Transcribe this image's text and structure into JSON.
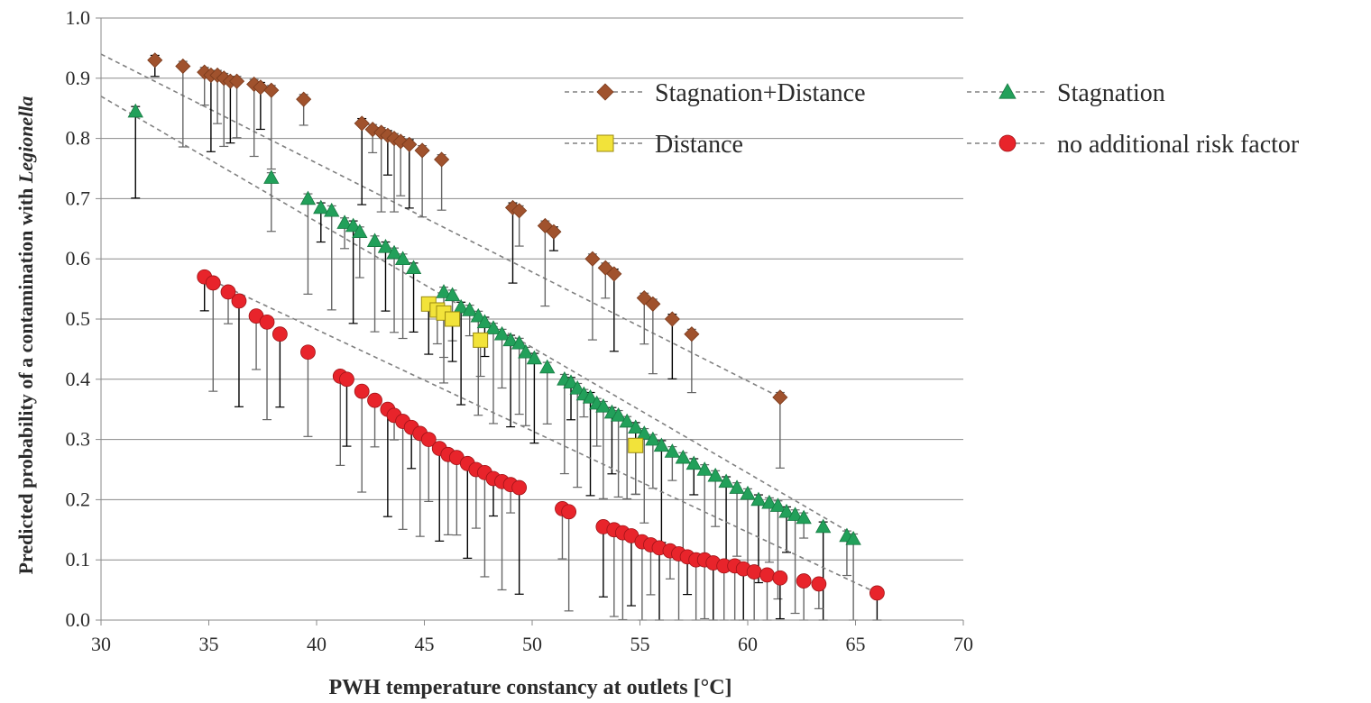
{
  "chart_data": {
    "type": "scatter",
    "title": "",
    "xlabel": "PWH temperature constancy at outlets [°C]",
    "ylabel_main": "Predicted probability of a contamination with ",
    "ylabel_italic": "Legionella",
    "xlim": [
      30,
      70
    ],
    "ylim": [
      0.0,
      1.0
    ],
    "xticks": [
      "30",
      "35",
      "40",
      "45",
      "50",
      "55",
      "60",
      "65",
      "70"
    ],
    "yticks": [
      "0.0",
      "0.1",
      "0.2",
      "0.3",
      "0.4",
      "0.5",
      "0.6",
      "0.7",
      "0.8",
      "0.9",
      "1.0"
    ],
    "grid": "horizontal",
    "legend_position": "top-right",
    "series": [
      {
        "name": "Stagnation+Distance",
        "marker": "diamond",
        "color": "#a0522d",
        "line_color": "#808080",
        "trend": [
          [
            30,
            0.94
          ],
          [
            61.5,
            0.37
          ]
        ],
        "x": [
          32.5,
          33.8,
          34.8,
          35.1,
          35.4,
          35.7,
          36.0,
          36.3,
          37.1,
          37.4,
          37.9,
          39.4,
          42.1,
          42.6,
          43.0,
          43.3,
          43.6,
          43.9,
          44.3,
          44.9,
          45.8,
          49.1,
          49.4,
          50.6,
          51.0,
          52.8,
          53.4,
          53.8,
          55.2,
          55.6,
          56.5,
          57.4,
          61.5
        ],
        "y": [
          0.93,
          0.92,
          0.91,
          0.905,
          0.905,
          0.9,
          0.895,
          0.895,
          0.89,
          0.885,
          0.88,
          0.865,
          0.825,
          0.815,
          0.81,
          0.805,
          0.8,
          0.795,
          0.79,
          0.78,
          0.765,
          0.685,
          0.68,
          0.655,
          0.645,
          0.6,
          0.585,
          0.575,
          0.535,
          0.525,
          0.5,
          0.475,
          0.37
        ]
      },
      {
        "name": "Stagnation",
        "marker": "triangle",
        "color": "#22a05a",
        "line_color": "#808080",
        "trend": [
          [
            30,
            0.87
          ],
          [
            65,
            0.14
          ]
        ],
        "x": [
          31.6,
          37.9,
          39.6,
          40.2,
          40.7,
          41.3,
          41.7,
          42.0,
          42.7,
          43.2,
          43.6,
          44.0,
          44.5,
          45.9,
          46.3,
          46.7,
          47.1,
          47.5,
          47.8,
          48.2,
          48.6,
          49.0,
          49.4,
          49.7,
          50.1,
          50.7,
          51.5,
          51.8,
          52.1,
          52.4,
          52.7,
          53.0,
          53.3,
          53.7,
          54.0,
          54.4,
          54.8,
          55.2,
          55.6,
          56.0,
          56.5,
          57.0,
          57.5,
          58.0,
          58.5,
          59.0,
          59.5,
          60.0,
          60.5,
          61.0,
          61.4,
          61.8,
          62.2,
          62.6,
          63.5,
          64.6,
          64.9
        ],
        "y": [
          0.845,
          0.735,
          0.7,
          0.685,
          0.68,
          0.66,
          0.655,
          0.645,
          0.63,
          0.62,
          0.61,
          0.6,
          0.585,
          0.545,
          0.54,
          0.52,
          0.515,
          0.505,
          0.495,
          0.485,
          0.475,
          0.465,
          0.46,
          0.445,
          0.435,
          0.42,
          0.4,
          0.395,
          0.385,
          0.375,
          0.37,
          0.36,
          0.355,
          0.345,
          0.34,
          0.33,
          0.32,
          0.31,
          0.3,
          0.29,
          0.28,
          0.27,
          0.26,
          0.25,
          0.24,
          0.23,
          0.22,
          0.21,
          0.2,
          0.195,
          0.19,
          0.18,
          0.175,
          0.17,
          0.155,
          0.14,
          0.135
        ]
      },
      {
        "name": "Distance",
        "marker": "square",
        "color": "#f2e33a",
        "line_color": "#808080",
        "trend": [],
        "x": [
          45.2,
          45.6,
          45.9,
          46.3,
          47.6,
          54.8
        ],
        "y": [
          0.525,
          0.515,
          0.51,
          0.5,
          0.465,
          0.29
        ]
      },
      {
        "name": "no additional risk factor",
        "marker": "circle",
        "color": "#e8242b",
        "line_color": "#808080",
        "trend": [
          [
            34.8,
            0.57
          ],
          [
            66.0,
            0.045
          ]
        ],
        "x": [
          34.8,
          35.2,
          35.9,
          36.4,
          37.2,
          37.7,
          38.3,
          39.6,
          41.1,
          41.4,
          42.1,
          42.7,
          43.3,
          43.6,
          44.0,
          44.4,
          44.8,
          45.2,
          45.7,
          46.1,
          46.5,
          47.0,
          47.4,
          47.8,
          48.2,
          48.6,
          49.0,
          49.4,
          51.4,
          51.7,
          53.3,
          53.8,
          54.2,
          54.6,
          55.1,
          55.5,
          55.9,
          56.4,
          56.8,
          57.2,
          57.6,
          58.0,
          58.4,
          58.9,
          59.4,
          59.8,
          60.3,
          60.9,
          61.5,
          62.6,
          63.3,
          66.0
        ],
        "y": [
          0.57,
          0.56,
          0.545,
          0.53,
          0.505,
          0.495,
          0.475,
          0.445,
          0.405,
          0.4,
          0.38,
          0.365,
          0.35,
          0.34,
          0.33,
          0.32,
          0.31,
          0.3,
          0.285,
          0.275,
          0.27,
          0.26,
          0.25,
          0.245,
          0.235,
          0.23,
          0.225,
          0.22,
          0.185,
          0.18,
          0.155,
          0.15,
          0.145,
          0.14,
          0.13,
          0.125,
          0.12,
          0.115,
          0.11,
          0.105,
          0.1,
          0.1,
          0.095,
          0.09,
          0.09,
          0.085,
          0.08,
          0.075,
          0.07,
          0.065,
          0.06,
          0.045
        ]
      }
    ]
  }
}
